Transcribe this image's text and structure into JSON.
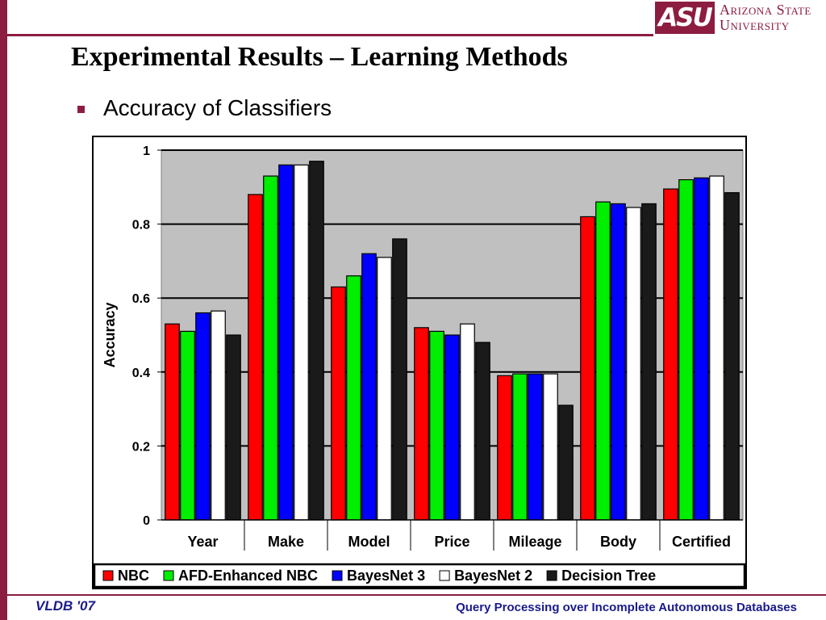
{
  "slide": {
    "title": "Experimental Results – Learning Methods",
    "bullet": "Accuracy of Classifiers"
  },
  "logo": {
    "mark": "ASU",
    "line1": "Arizona State",
    "line2": "University",
    "color": "#8c1d40"
  },
  "footer": {
    "left": "VLDB '07",
    "right": "Query Processing over Incomplete Autonomous Databases"
  },
  "chart_data": {
    "type": "bar",
    "title": "",
    "xlabel": "",
    "ylabel": "Accuracy",
    "ylim": [
      0,
      1
    ],
    "yticks": [
      "0",
      "0.2",
      "0.4",
      "0.6",
      "0.8",
      "1"
    ],
    "grid": true,
    "legend": "bottom",
    "categories": [
      "Year",
      "Make",
      "Model",
      "Price",
      "Mileage",
      "Body",
      "Certified"
    ],
    "series": [
      {
        "name": "NBC",
        "color": "#ff0000",
        "values": [
          0.53,
          0.88,
          0.63,
          0.52,
          0.39,
          0.82,
          0.895
        ]
      },
      {
        "name": "AFD-Enhanced NBC",
        "color": "#00ee00",
        "values": [
          0.51,
          0.93,
          0.66,
          0.51,
          0.395,
          0.86,
          0.92
        ]
      },
      {
        "name": "BayesNet 3",
        "color": "#0000ff",
        "values": [
          0.56,
          0.96,
          0.72,
          0.5,
          0.395,
          0.855,
          0.925
        ]
      },
      {
        "name": "BayesNet 2",
        "color": "#ffffff",
        "values": [
          0.565,
          0.96,
          0.71,
          0.53,
          0.395,
          0.845,
          0.93
        ]
      },
      {
        "name": "Decision Tree",
        "color": "#1a1a1a",
        "values": [
          0.5,
          0.97,
          0.76,
          0.48,
          0.31,
          0.855,
          0.885
        ]
      }
    ]
  }
}
